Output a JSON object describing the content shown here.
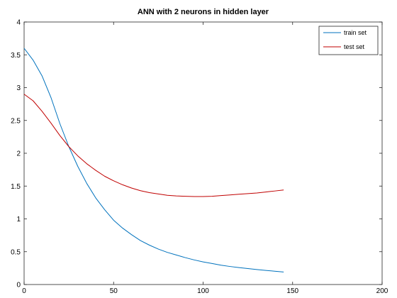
{
  "chart_data": {
    "type": "line",
    "title": "ANN with 2 neurons in hidden layer",
    "xlabel": "",
    "ylabel": "",
    "xlim": [
      0,
      200
    ],
    "ylim": [
      0,
      4
    ],
    "xticks": [
      "0",
      "50",
      "100",
      "150",
      "200"
    ],
    "yticks": [
      "0",
      "0.5",
      "1",
      "1.5",
      "2",
      "2.5",
      "3",
      "3.5",
      "4"
    ],
    "grid": false,
    "legend_position": "top-right",
    "series": [
      {
        "name": "train set",
        "color": "#0072bd",
        "x": [
          0,
          5,
          10,
          15,
          20,
          25,
          30,
          35,
          40,
          45,
          50,
          55,
          60,
          65,
          70,
          75,
          80,
          85,
          90,
          95,
          100,
          105,
          110,
          115,
          120,
          125,
          130,
          135,
          140,
          145
        ],
        "y": [
          3.6,
          3.42,
          3.18,
          2.85,
          2.45,
          2.1,
          1.8,
          1.54,
          1.32,
          1.14,
          0.98,
          0.86,
          0.76,
          0.67,
          0.6,
          0.54,
          0.49,
          0.45,
          0.41,
          0.375,
          0.345,
          0.32,
          0.295,
          0.275,
          0.258,
          0.243,
          0.228,
          0.215,
          0.203,
          0.19
        ]
      },
      {
        "name": "test set",
        "color": "#c00000",
        "x": [
          0,
          5,
          10,
          15,
          20,
          25,
          30,
          35,
          40,
          45,
          50,
          55,
          60,
          65,
          70,
          75,
          80,
          85,
          90,
          95,
          100,
          105,
          110,
          115,
          120,
          125,
          130,
          135,
          140,
          145
        ],
        "y": [
          2.9,
          2.8,
          2.64,
          2.46,
          2.27,
          2.1,
          1.96,
          1.84,
          1.74,
          1.65,
          1.58,
          1.52,
          1.47,
          1.43,
          1.4,
          1.38,
          1.36,
          1.35,
          1.345,
          1.34,
          1.34,
          1.345,
          1.355,
          1.365,
          1.375,
          1.385,
          1.395,
          1.41,
          1.425,
          1.44
        ]
      }
    ]
  }
}
